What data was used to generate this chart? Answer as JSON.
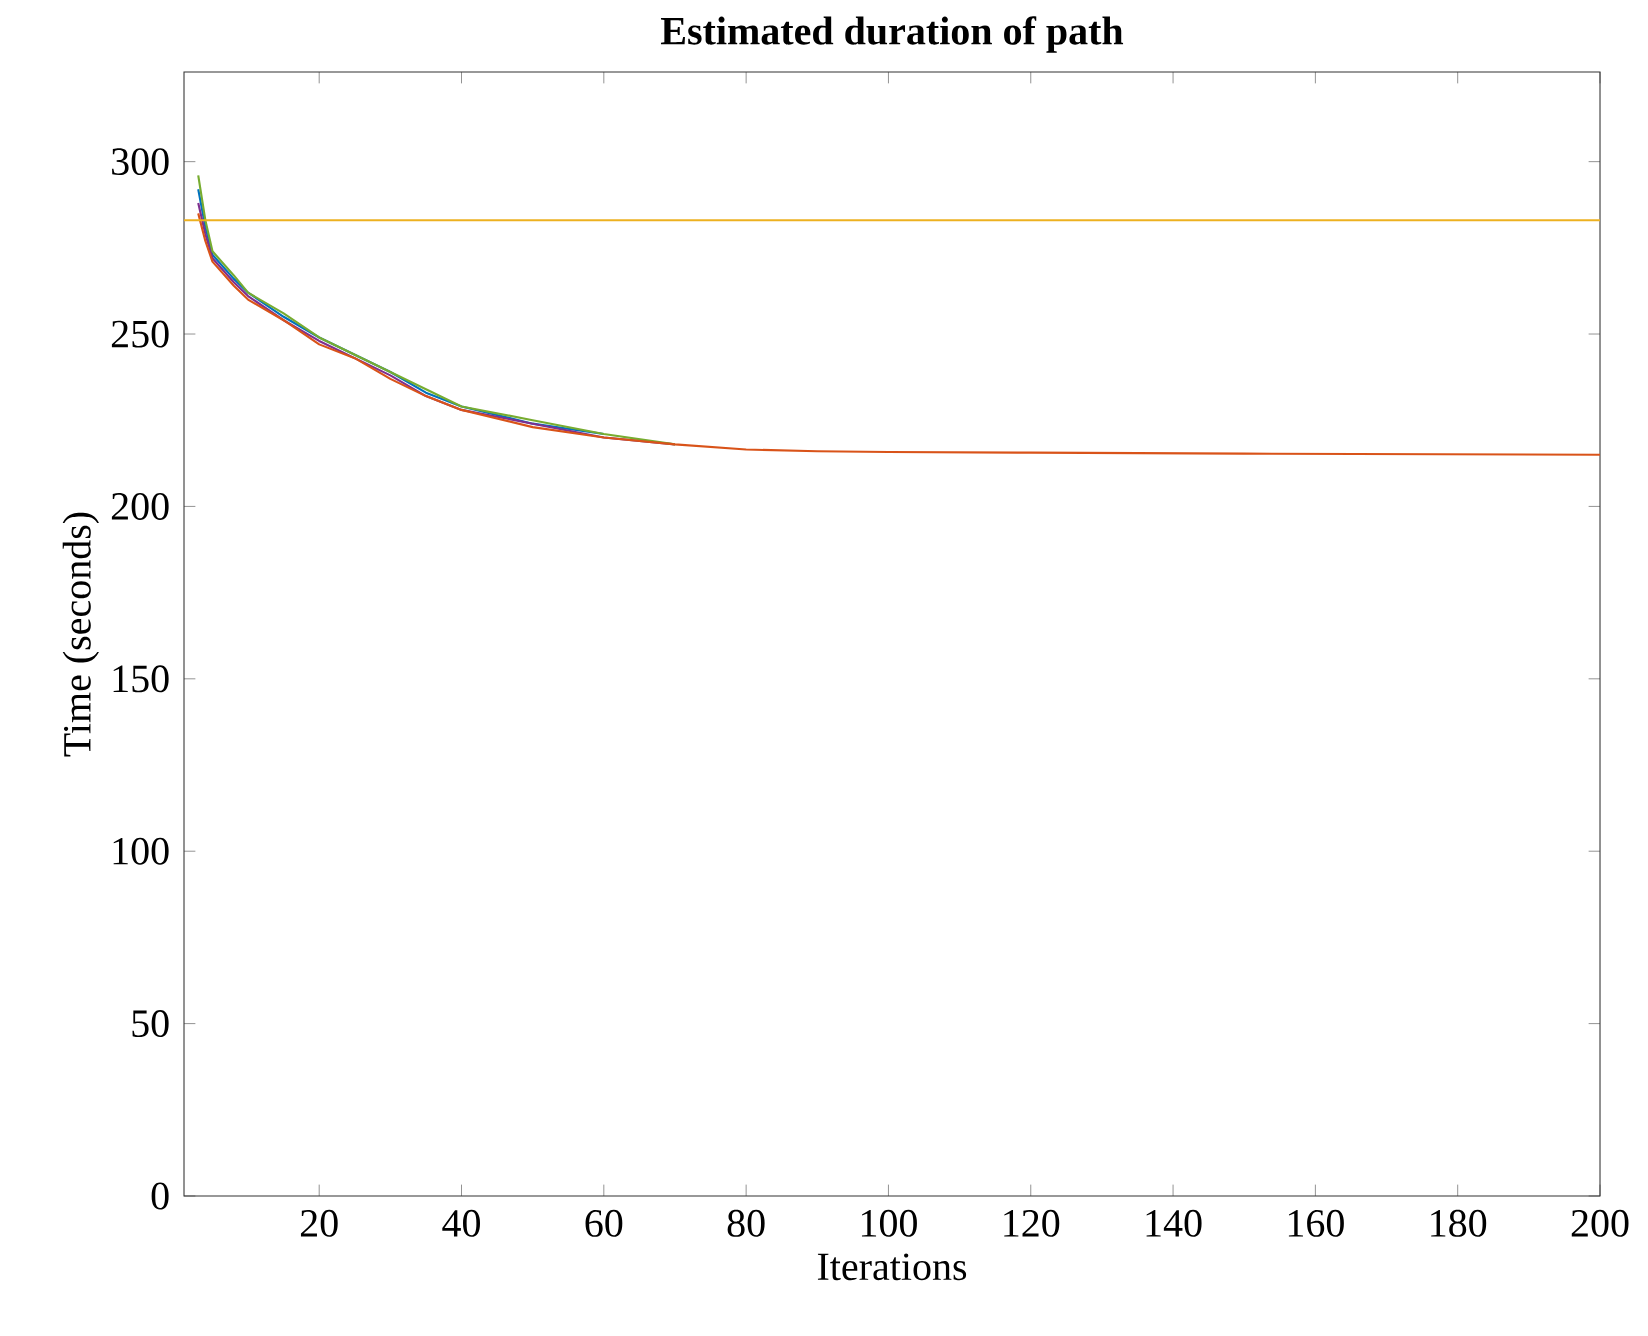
{
  "chart_data": {
    "type": "line",
    "title": "Estimated duration of path",
    "xlabel": "Iterations",
    "ylabel": "Time (seconds)",
    "series": [
      {
        "color": "#0072bd",
        "x": [
          3,
          4,
          5,
          8,
          10,
          15,
          20,
          25,
          30,
          35,
          40,
          50,
          60
        ],
        "values": [
          292,
          281,
          273,
          266,
          262,
          255,
          249,
          244,
          239,
          233,
          229,
          224,
          221
        ]
      },
      {
        "color": "#7e2f8e",
        "x": [
          3,
          4,
          5,
          8,
          10,
          15,
          20,
          25,
          30,
          35,
          40,
          50,
          60,
          70
        ],
        "values": [
          288,
          279,
          272,
          265,
          261,
          254,
          248,
          243,
          238,
          232,
          228,
          224,
          220,
          218
        ]
      },
      {
        "color": "#77ac30",
        "x": [
          3,
          4,
          5,
          8,
          10,
          15,
          20,
          25,
          30,
          35,
          40,
          50,
          60,
          70
        ],
        "values": [
          296,
          283,
          274,
          267,
          262,
          256,
          249,
          244,
          239,
          234,
          229,
          225,
          221,
          218
        ]
      },
      {
        "color": "#d95319",
        "x": [
          3,
          4,
          5,
          8,
          10,
          15,
          20,
          25,
          30,
          35,
          40,
          50,
          60,
          70,
          80,
          90,
          100,
          120,
          150,
          200
        ],
        "values": [
          285,
          277,
          271,
          264,
          260,
          254,
          247,
          243,
          237,
          232,
          228,
          223,
          220,
          218,
          216.5,
          216,
          215.8,
          215.6,
          215.3,
          215
        ]
      }
    ],
    "xlim": [
      1,
      200
    ],
    "ylim": [
      0,
      326
    ],
    "xticks": [
      20,
      40,
      60,
      80,
      100,
      120,
      140,
      160,
      180,
      200
    ],
    "yticks": [
      0,
      50,
      100,
      150,
      200,
      250,
      300
    ],
    "ref_lines": [
      {
        "axis": "y",
        "value": 283,
        "color": "#edb120"
      }
    ],
    "grid": false,
    "marker": "none",
    "line_style": "solid"
  }
}
